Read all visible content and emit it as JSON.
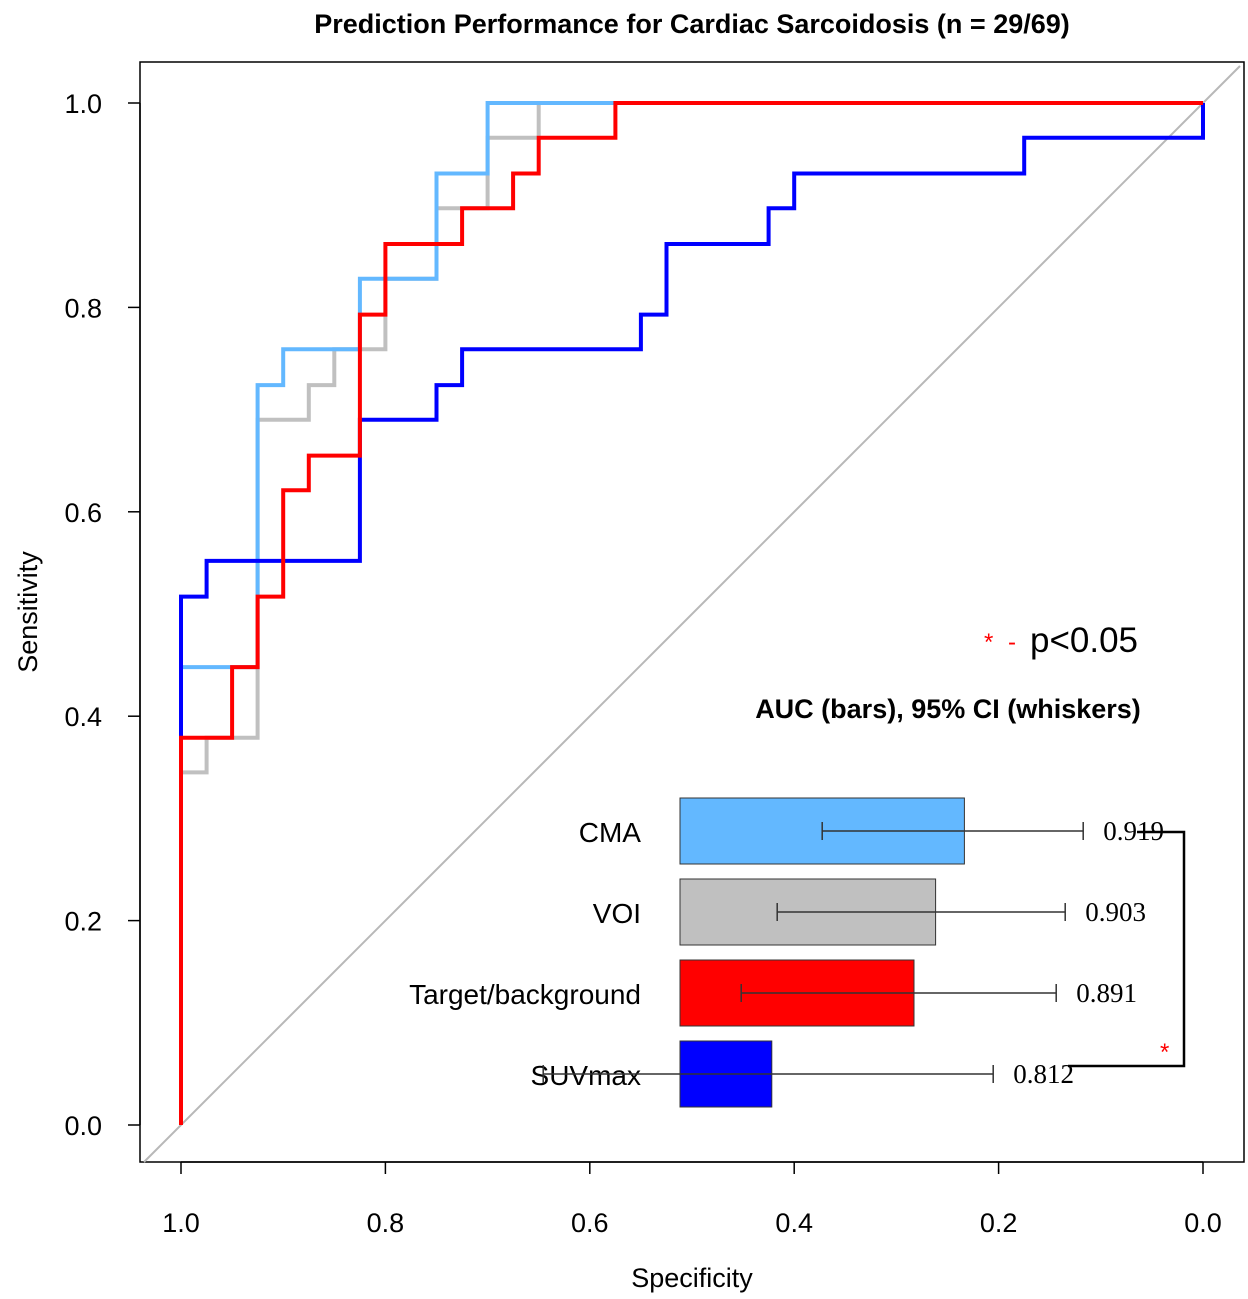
{
  "chart_data": {
    "type": "line",
    "title": "Prediction Performance for Cardiac Sarcoidosis (n = 29/69)",
    "xlabel": "Specificity",
    "ylabel": "Sensitivity",
    "xlim": [
      1.0,
      0.0
    ],
    "ylim": [
      0.0,
      1.0
    ],
    "xticks": [
      "1.0",
      "0.8",
      "0.6",
      "0.4",
      "0.2",
      "0.0"
    ],
    "yticks": [
      "0.0",
      "0.2",
      "0.4",
      "0.6",
      "0.8",
      "1.0"
    ],
    "reference_line": "diagonal",
    "series": [
      {
        "name": "VOI",
        "color": "#c0c0c0",
        "points": [
          [
            1.0,
            0.0
          ],
          [
            1.0,
            0.345
          ],
          [
            0.975,
            0.345
          ],
          [
            0.975,
            0.379
          ],
          [
            0.925,
            0.379
          ],
          [
            0.925,
            0.69
          ],
          [
            0.875,
            0.69
          ],
          [
            0.875,
            0.724
          ],
          [
            0.85,
            0.724
          ],
          [
            0.85,
            0.759
          ],
          [
            0.8,
            0.759
          ],
          [
            0.8,
            0.828
          ],
          [
            0.75,
            0.828
          ],
          [
            0.75,
            0.897
          ],
          [
            0.7,
            0.897
          ],
          [
            0.7,
            0.966
          ],
          [
            0.65,
            0.966
          ],
          [
            0.65,
            1.0
          ],
          [
            0.0,
            1.0
          ]
        ]
      },
      {
        "name": "CMA",
        "color": "#63b8ff",
        "points": [
          [
            1.0,
            0.0
          ],
          [
            1.0,
            0.448
          ],
          [
            0.925,
            0.448
          ],
          [
            0.925,
            0.724
          ],
          [
            0.9,
            0.724
          ],
          [
            0.9,
            0.759
          ],
          [
            0.825,
            0.759
          ],
          [
            0.825,
            0.828
          ],
          [
            0.75,
            0.828
          ],
          [
            0.75,
            0.931
          ],
          [
            0.7,
            0.931
          ],
          [
            0.7,
            1.0
          ],
          [
            0.0,
            1.0
          ]
        ]
      },
      {
        "name": "SUVmax",
        "color": "#0000ff",
        "points": [
          [
            1.0,
            0.0
          ],
          [
            1.0,
            0.517
          ],
          [
            0.975,
            0.517
          ],
          [
            0.975,
            0.552
          ],
          [
            0.925,
            0.552
          ],
          [
            0.925,
            0.552
          ],
          [
            0.825,
            0.552
          ],
          [
            0.825,
            0.69
          ],
          [
            0.75,
            0.69
          ],
          [
            0.75,
            0.724
          ],
          [
            0.725,
            0.724
          ],
          [
            0.725,
            0.759
          ],
          [
            0.55,
            0.759
          ],
          [
            0.55,
            0.793
          ],
          [
            0.525,
            0.793
          ],
          [
            0.525,
            0.862
          ],
          [
            0.425,
            0.862
          ],
          [
            0.425,
            0.897
          ],
          [
            0.4,
            0.897
          ],
          [
            0.4,
            0.931
          ],
          [
            0.175,
            0.931
          ],
          [
            0.175,
            0.966
          ],
          [
            0.0,
            0.966
          ],
          [
            0.0,
            1.0
          ]
        ]
      },
      {
        "name": "Target/background",
        "color": "#ff0000",
        "points": [
          [
            1.0,
            0.0
          ],
          [
            1.0,
            0.379
          ],
          [
            0.95,
            0.379
          ],
          [
            0.95,
            0.448
          ],
          [
            0.925,
            0.448
          ],
          [
            0.925,
            0.517
          ],
          [
            0.9,
            0.517
          ],
          [
            0.9,
            0.621
          ],
          [
            0.875,
            0.621
          ],
          [
            0.875,
            0.655
          ],
          [
            0.825,
            0.655
          ],
          [
            0.825,
            0.793
          ],
          [
            0.8,
            0.793
          ],
          [
            0.8,
            0.862
          ],
          [
            0.725,
            0.862
          ],
          [
            0.725,
            0.897
          ],
          [
            0.675,
            0.897
          ],
          [
            0.675,
            0.931
          ],
          [
            0.65,
            0.931
          ],
          [
            0.65,
            0.966
          ],
          [
            0.575,
            0.966
          ],
          [
            0.575,
            1.0
          ],
          [
            0.0,
            1.0
          ]
        ]
      }
    ],
    "inset": {
      "type": "bar",
      "title": "AUC (bars), 95% CI (whiskers)",
      "orientation": "horizontal",
      "bars": [
        {
          "label": "CMA",
          "value": 0.919,
          "value_text": "0.919",
          "ci": [
            0.84,
            0.985
          ],
          "color": "#63b8ff"
        },
        {
          "label": "VOI",
          "value": 0.903,
          "value_text": "0.903",
          "ci": [
            0.815,
            0.975
          ],
          "color": "#c0c0c0"
        },
        {
          "label": "Target/background",
          "value": 0.891,
          "value_text": "0.891",
          "ci": [
            0.795,
            0.97
          ],
          "color": "#ff0000"
        },
        {
          "label": "SUVmax",
          "value": 0.812,
          "value_text": "0.812",
          "ci": [
            0.685,
            0.935
          ],
          "color": "#0000ff"
        }
      ],
      "significance": {
        "between": [
          "CMA",
          "SUVmax"
        ],
        "marker": "*",
        "color": "#ff0000"
      },
      "legend_star": "*",
      "legend_dash": "-",
      "legend_text": "p<0.05"
    }
  }
}
